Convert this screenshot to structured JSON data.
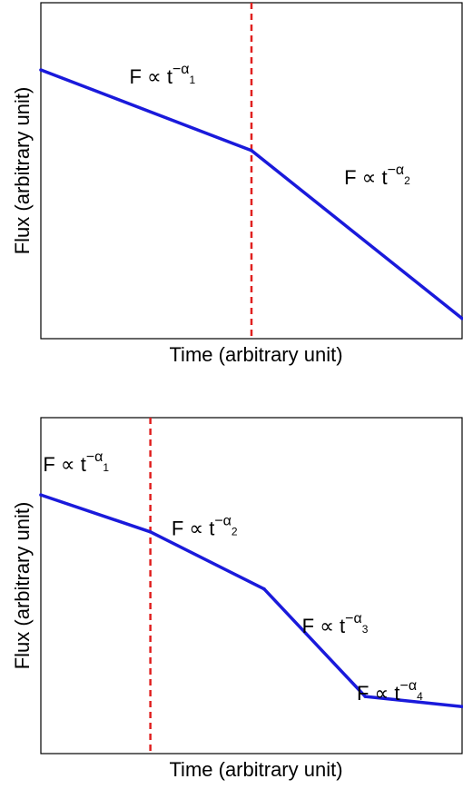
{
  "chart_data": [
    {
      "type": "line",
      "xlabel": "Time (arbitrary unit)",
      "ylabel": "Flux (arbitrary unit)",
      "xlim": [
        0,
        10
      ],
      "ylim": [
        0,
        10
      ],
      "grid": false,
      "axis_ticks": false,
      "series": [
        {
          "color": "#1a1adb",
          "x": [
            0,
            5,
            10
          ],
          "y": [
            8.0,
            5.6,
            0.6
          ]
        }
      ],
      "break_line": {
        "x": 5,
        "color": "#e0201f",
        "style": "dashed"
      },
      "annotations": [
        {
          "base": "F ∝ t",
          "exp": "−α",
          "sub": "1",
          "x": 2.1,
          "y": 7.6
        },
        {
          "base": "F ∝ t",
          "exp": "−α",
          "sub": "2",
          "x": 7.2,
          "y": 4.6
        }
      ]
    },
    {
      "type": "line",
      "xlabel": "Time (arbitrary unit)",
      "ylabel": "Flux (arbitrary unit)",
      "xlim": [
        0,
        10
      ],
      "ylim": [
        0,
        10
      ],
      "grid": false,
      "axis_ticks": false,
      "series": [
        {
          "color": "#1a1adb",
          "x": [
            0,
            2.6,
            5.3,
            7.7,
            10
          ],
          "y": [
            7.7,
            6.6,
            4.9,
            1.7,
            1.4
          ]
        }
      ],
      "break_line": {
        "x": 2.6,
        "color": "#e0201f",
        "style": "dashed"
      },
      "annotations": [
        {
          "base": "F ∝ t",
          "exp": "−α",
          "sub": "1",
          "x": 0.05,
          "y": 8.4
        },
        {
          "base": "F ∝ t",
          "exp": "−α",
          "sub": "2",
          "x": 3.1,
          "y": 6.5
        },
        {
          "base": "F ∝ t",
          "exp": "−α",
          "sub": "3",
          "x": 6.2,
          "y": 3.6
        },
        {
          "base": "F ∝ t",
          "exp": "−α",
          "sub": "4",
          "x": 7.5,
          "y": 1.6
        }
      ]
    }
  ]
}
